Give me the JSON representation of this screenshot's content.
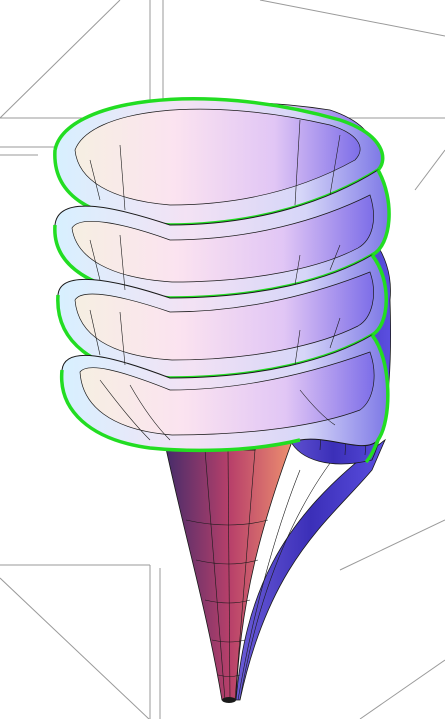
{
  "figure": {
    "kind": "3D parametric surface render",
    "visible_text": [],
    "box_frame": true,
    "colors": {
      "background": "#ffffff",
      "box_edge": "#9a9a9a",
      "inner_cone_dark": "#4a2f6e",
      "inner_cone_mid": "#b0406a",
      "inner_cone_light": "#f08a6a",
      "outer_face_dark": "#3b2fb8",
      "outer_face_light": "#8d7df2",
      "bowl_light": "#fbe9f2",
      "bowl_blue": "#c6caf6",
      "rim_highlight": "#e4e9ff",
      "helix_edge": "#22dd22",
      "mesh_line": "#1a1a1a"
    },
    "spiral_turns_visible": 4
  }
}
